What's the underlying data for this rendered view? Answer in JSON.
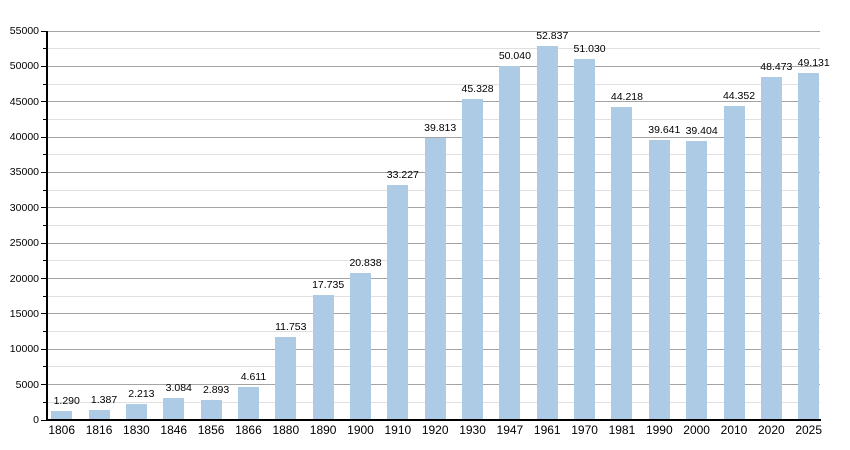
{
  "chart_data": {
    "type": "bar",
    "title": "",
    "subtitle": "",
    "xlabel": "",
    "ylabel": "",
    "legend": "none",
    "grid": "major+minor horizontal",
    "categories": [
      "1806",
      "1816",
      "1830",
      "1846",
      "1856",
      "1866",
      "1880",
      "1890",
      "1900",
      "1910",
      "1920",
      "1930",
      "1947",
      "1961",
      "1970",
      "1981",
      "1990",
      "2000",
      "2010",
      "2020",
      "2025"
    ],
    "values": [
      1290,
      1387,
      2213,
      3084,
      2893,
      4611,
      11753,
      17735,
      20838,
      33227,
      39813,
      45328,
      50040,
      52837,
      51030,
      44218,
      39641,
      39404,
      44352,
      48473,
      49131
    ],
    "bar_labels": [
      "1.290",
      "1.387",
      "2.213",
      "3.084",
      "2.893",
      "4.611",
      "11.753",
      "17.735",
      "20.838",
      "33.227",
      "39.813",
      "45.328",
      "50.040",
      "52.837",
      "51.030",
      "44.218",
      "39.641",
      "39.404",
      "44.352",
      "48.473",
      "49.131"
    ],
    "ylim": [
      0,
      55000
    ],
    "y_major_tick_step": 5000,
    "y_minor_tick_step": 2500,
    "y_tick_labels": [
      "0",
      "5000",
      "10000",
      "15000",
      "20000",
      "25000",
      "30000",
      "35000",
      "40000",
      "45000",
      "50000",
      "55000"
    ],
    "colors": {
      "bar_fill": "#aecbe6",
      "major_gridline": "#a3a3a3",
      "minor_gridline": "#e0e0e0",
      "axis": "#000000",
      "text": "#000000",
      "background": "#ffffff"
    }
  }
}
